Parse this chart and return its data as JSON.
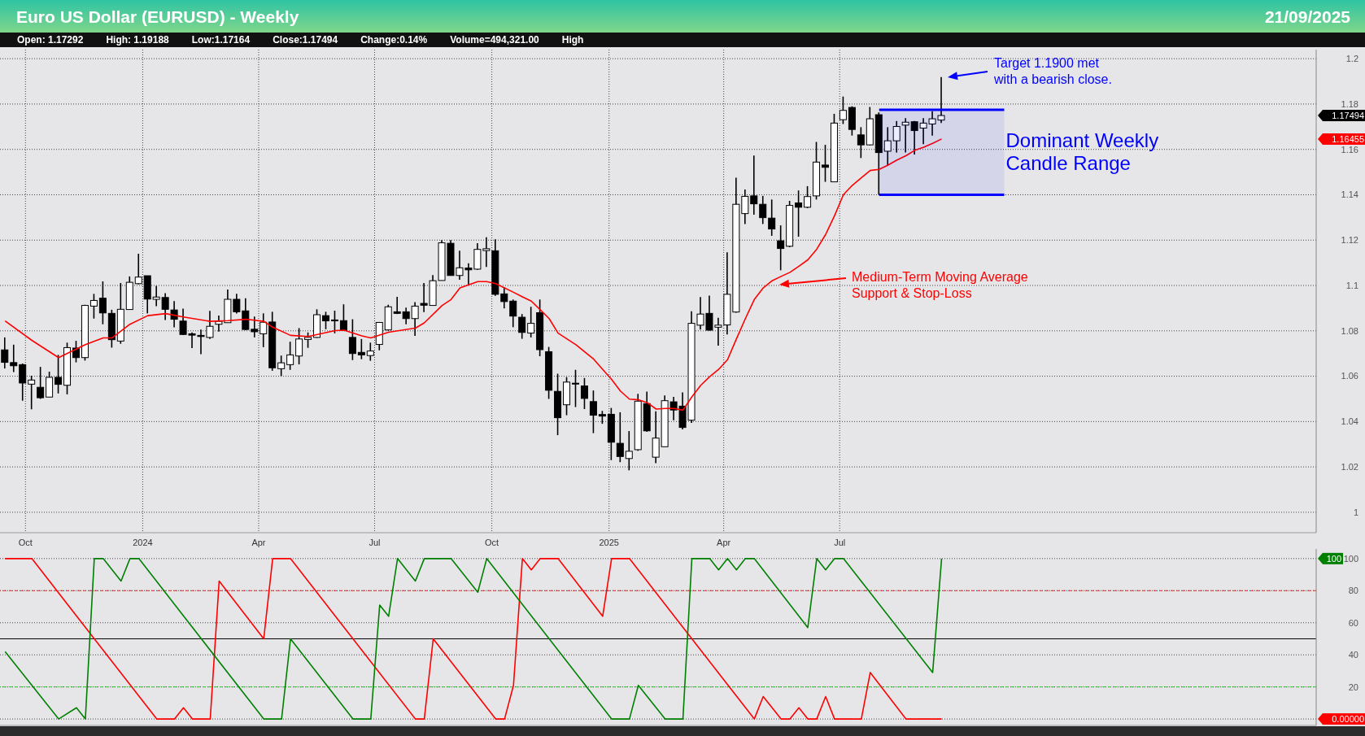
{
  "chart_data": [
    {
      "type": "candlestick",
      "title": "Euro US Dollar (EURUSD) - Weekly",
      "subtitle": "21/09/2025",
      "x": [
        "2023-09-15",
        "2023-09-22",
        "2023-09-29",
        "2023-10-06",
        "2023-10-13",
        "2023-10-20",
        "2023-10-27",
        "2023-11-03",
        "2023-11-10",
        "2023-11-17",
        "2023-11-24",
        "2023-12-01",
        "2023-12-08",
        "2023-12-15",
        "2023-12-22",
        "2023-12-29",
        "2024-01-05",
        "2024-01-12",
        "2024-01-19",
        "2024-01-26",
        "2024-02-02",
        "2024-02-09",
        "2024-02-16",
        "2024-02-23",
        "2024-03-01",
        "2024-03-08",
        "2024-03-15",
        "2024-03-22",
        "2024-03-29",
        "2024-04-05",
        "2024-04-12",
        "2024-04-19",
        "2024-04-26",
        "2024-05-03",
        "2024-05-10",
        "2024-05-17",
        "2024-05-24",
        "2024-05-31",
        "2024-06-07",
        "2024-06-14",
        "2024-06-21",
        "2024-06-28",
        "2024-07-05",
        "2024-07-12",
        "2024-07-19",
        "2024-07-26",
        "2024-08-02",
        "2024-08-09",
        "2024-08-16",
        "2024-08-23",
        "2024-08-30",
        "2024-09-06",
        "2024-09-13",
        "2024-09-20",
        "2024-09-27",
        "2024-10-04",
        "2024-10-11",
        "2024-10-18",
        "2024-10-25",
        "2024-11-01",
        "2024-11-08",
        "2024-11-15",
        "2024-11-22",
        "2024-11-29",
        "2024-12-06",
        "2024-12-13",
        "2024-12-20",
        "2024-12-27",
        "2025-01-03",
        "2025-01-10",
        "2025-01-17",
        "2025-01-24",
        "2025-01-31",
        "2025-02-07",
        "2025-02-14",
        "2025-02-21",
        "2025-02-28",
        "2025-03-07",
        "2025-03-14",
        "2025-03-21",
        "2025-03-28",
        "2025-04-04",
        "2025-04-11",
        "2025-04-18",
        "2025-04-25",
        "2025-05-02",
        "2025-05-09",
        "2025-05-16",
        "2025-05-23",
        "2025-05-30",
        "2025-06-06",
        "2025-06-13",
        "2025-06-20",
        "2025-06-27",
        "2025-07-04",
        "2025-07-11",
        "2025-07-18",
        "2025-07-25",
        "2025-08-01",
        "2025-08-08",
        "2025-08-15",
        "2025-08-22",
        "2025-08-29",
        "2025-09-05",
        "2025-09-12",
        "2025-09-19"
      ],
      "ohlc": [
        [
          1.0716,
          1.0771,
          1.0634,
          1.0661
        ],
        [
          1.066,
          1.0739,
          1.0618,
          1.0646
        ],
        [
          1.0651,
          1.0656,
          1.0492,
          1.057
        ],
        [
          1.0565,
          1.0602,
          1.0454,
          1.0583
        ],
        [
          1.0551,
          1.0641,
          1.05,
          1.0505
        ],
        [
          1.0508,
          1.062,
          1.0508,
          1.0595
        ],
        [
          1.0595,
          1.0694,
          1.0524,
          1.0564
        ],
        [
          1.056,
          1.0748,
          1.052,
          1.0726
        ],
        [
          1.0724,
          1.0756,
          1.0661,
          1.0682
        ],
        [
          1.0682,
          1.0915,
          1.0669,
          1.0912
        ],
        [
          1.0909,
          1.0963,
          1.0854,
          1.0934
        ],
        [
          1.0944,
          1.1018,
          1.0829,
          1.0879
        ],
        [
          1.0877,
          1.0893,
          1.0726,
          1.0761
        ],
        [
          1.0755,
          1.1011,
          1.0743,
          1.0895
        ],
        [
          1.0894,
          1.104,
          1.0894,
          1.1014
        ],
        [
          1.1008,
          1.114,
          1.1005,
          1.1037
        ],
        [
          1.1043,
          1.1043,
          1.0877,
          1.094
        ],
        [
          1.0939,
          1.0998,
          1.0909,
          1.0949
        ],
        [
          1.0947,
          1.0966,
          1.0848,
          1.0895
        ],
        [
          1.0892,
          1.0931,
          1.0815,
          1.0851
        ],
        [
          1.0843,
          1.0898,
          1.0781,
          1.0784
        ],
        [
          1.0787,
          1.0793,
          1.0724,
          1.0781
        ],
        [
          1.078,
          1.0806,
          1.0697,
          1.0775
        ],
        [
          1.0771,
          1.0888,
          1.0764,
          1.082
        ],
        [
          1.0829,
          1.0867,
          1.0797,
          1.0842
        ],
        [
          1.0836,
          1.0982,
          1.0836,
          1.0939
        ],
        [
          1.0939,
          1.0963,
          1.0876,
          1.0884
        ],
        [
          1.0888,
          1.0944,
          1.0803,
          1.0806
        ],
        [
          1.0807,
          1.0863,
          1.0771,
          1.0796
        ],
        [
          1.0787,
          1.0877,
          1.0728,
          1.0838
        ],
        [
          1.0839,
          1.0884,
          1.0624,
          1.0637
        ],
        [
          1.0633,
          1.0691,
          1.0601,
          1.0659
        ],
        [
          1.0651,
          1.0752,
          1.0628,
          1.0694
        ],
        [
          1.0689,
          1.0812,
          1.0652,
          1.0764
        ],
        [
          1.0762,
          1.0793,
          1.0725,
          1.0771
        ],
        [
          1.0771,
          1.0895,
          1.0769,
          1.0871
        ],
        [
          1.0867,
          1.0884,
          1.0807,
          1.0844
        ],
        [
          1.0848,
          1.0889,
          1.0789,
          1.0844
        ],
        [
          1.0845,
          1.0917,
          1.0799,
          1.0801
        ],
        [
          1.0771,
          1.0851,
          1.0671,
          1.07
        ],
        [
          1.0705,
          1.0764,
          1.0675,
          1.0694
        ],
        [
          1.0691,
          1.0748,
          1.0668,
          1.0711
        ],
        [
          1.074,
          1.0839,
          1.0714,
          1.0837
        ],
        [
          1.0804,
          1.0915,
          1.0801,
          1.0906
        ],
        [
          1.0884,
          1.095,
          1.0874,
          1.0877
        ],
        [
          1.0884,
          1.0902,
          1.0829,
          1.0854
        ],
        [
          1.0854,
          1.0927,
          1.0778,
          1.0909
        ],
        [
          1.0921,
          1.1011,
          1.0883,
          1.0913
        ],
        [
          1.0912,
          1.1046,
          1.0912,
          1.1021
        ],
        [
          1.1022,
          1.12,
          1.1022,
          1.1188
        ],
        [
          1.1186,
          1.12,
          1.1044,
          1.1044
        ],
        [
          1.1044,
          1.1153,
          1.1025,
          1.1078
        ],
        [
          1.1077,
          1.1098,
          1.1004,
          1.1069
        ],
        [
          1.1072,
          1.1187,
          1.1069,
          1.1159
        ],
        [
          1.1154,
          1.1213,
          1.1082,
          1.1162
        ],
        [
          1.1153,
          1.1204,
          1.0954,
          1.0961
        ],
        [
          1.0963,
          1.0993,
          1.0899,
          1.0929
        ],
        [
          1.0931,
          1.0938,
          1.0816,
          1.0865
        ],
        [
          1.086,
          1.0874,
          1.0765,
          1.0793
        ],
        [
          1.079,
          1.0906,
          1.0771,
          1.0833
        ],
        [
          1.088,
          1.0938,
          1.0688,
          1.0717
        ],
        [
          1.0708,
          1.0729,
          1.05,
          1.0538
        ],
        [
          1.0533,
          1.0611,
          1.034,
          1.0417
        ],
        [
          1.0474,
          1.0596,
          1.0428,
          1.0574
        ],
        [
          1.0569,
          1.0628,
          1.0464,
          1.0566
        ],
        [
          1.0557,
          1.0592,
          1.0455,
          1.0502
        ],
        [
          1.0488,
          1.0537,
          1.0349,
          1.0428
        ],
        [
          1.0431,
          1.0447,
          1.039,
          1.0424
        ],
        [
          1.0432,
          1.046,
          1.023,
          1.0309
        ],
        [
          1.0304,
          1.0441,
          1.0221,
          1.0246
        ],
        [
          1.0237,
          1.0358,
          1.0185,
          1.0269
        ],
        [
          1.0276,
          1.0522,
          1.0271,
          1.049
        ],
        [
          1.0479,
          1.0532,
          1.0355,
          1.0359
        ],
        [
          1.0243,
          1.0445,
          1.0217,
          1.0327
        ],
        [
          1.0289,
          1.0515,
          1.0289,
          1.0492
        ],
        [
          1.0487,
          1.0509,
          1.0406,
          1.0451
        ],
        [
          1.0468,
          1.0529,
          1.0365,
          1.0374
        ],
        [
          1.0406,
          1.0886,
          1.0394,
          1.0833
        ],
        [
          1.0825,
          1.0949,
          1.0806,
          1.0874
        ],
        [
          1.0877,
          1.0955,
          1.0801,
          1.0803
        ],
        [
          1.0816,
          1.0858,
          1.0735,
          1.0825
        ],
        [
          1.0826,
          1.1146,
          1.0784,
          1.0961
        ],
        [
          1.0883,
          1.1475,
          1.088,
          1.1358
        ],
        [
          1.1317,
          1.1423,
          1.1271,
          1.1393
        ],
        [
          1.1395,
          1.1573,
          1.1312,
          1.136
        ],
        [
          1.1358,
          1.1395,
          1.1271,
          1.1299
        ],
        [
          1.1297,
          1.1379,
          1.1219,
          1.1249
        ],
        [
          1.1197,
          1.1265,
          1.1067,
          1.1163
        ],
        [
          1.1173,
          1.1373,
          1.1169,
          1.1353
        ],
        [
          1.1364,
          1.1419,
          1.1215,
          1.1345
        ],
        [
          1.1345,
          1.1438,
          1.1341,
          1.1392
        ],
        [
          1.1395,
          1.1633,
          1.1379,
          1.1544
        ],
        [
          1.1531,
          1.162,
          1.1457,
          1.1521
        ],
        [
          1.1457,
          1.1757,
          1.1457,
          1.1716
        ],
        [
          1.1731,
          1.1833,
          1.1712,
          1.1772
        ],
        [
          1.1785,
          1.179,
          1.1661,
          1.1688
        ],
        [
          1.1664,
          1.1698,
          1.1562,
          1.162
        ],
        [
          1.162,
          1.1787,
          1.1618,
          1.1735
        ],
        [
          1.1753,
          1.1763,
          1.14,
          1.1586
        ],
        [
          1.1592,
          1.1698,
          1.1527,
          1.1638
        ],
        [
          1.1638,
          1.1725,
          1.1586,
          1.1701
        ],
        [
          1.1707,
          1.1738,
          1.1586,
          1.172
        ],
        [
          1.1722,
          1.1725,
          1.1577,
          1.1683
        ],
        [
          1.1694,
          1.1738,
          1.1623,
          1.1716
        ],
        [
          1.1712,
          1.1768,
          1.1661,
          1.1735
        ],
        [
          1.17292,
          1.19188,
          1.17164,
          1.17494
        ]
      ],
      "series": [
        {
          "type": "line",
          "color": "#ff0000",
          "x": [
            "2023-09-15",
            "2023-10-06",
            "2023-10-27",
            "2023-11-17",
            "2023-12-01",
            "2023-12-08",
            "2023-12-22",
            "2024-01-05",
            "2024-01-19",
            "2024-02-02",
            "2024-02-23",
            "2024-03-08",
            "2024-03-22",
            "2024-04-05",
            "2024-04-12",
            "2024-04-26",
            "2024-05-10",
            "2024-05-31",
            "2024-06-07",
            "2024-06-21",
            "2024-06-28",
            "2024-07-12",
            "2024-08-02",
            "2024-08-09",
            "2024-08-23",
            "2024-08-30",
            "2024-09-06",
            "2024-09-20",
            "2024-09-27",
            "2024-10-04",
            "2024-10-18",
            "2024-10-25",
            "2024-11-01",
            "2024-11-08",
            "2024-11-15",
            "2024-11-22",
            "2024-12-06",
            "2024-12-20",
            "2024-12-27",
            "2025-01-03",
            "2025-01-10",
            "2025-01-17",
            "2025-01-24",
            "2025-01-31",
            "2025-02-07",
            "2025-02-14",
            "2025-02-21",
            "2025-02-28",
            "2025-03-07",
            "2025-03-14",
            "2025-03-21",
            "2025-03-28",
            "2025-04-04",
            "2025-04-11",
            "2025-04-18",
            "2025-04-25",
            "2025-05-02",
            "2025-05-09",
            "2025-05-16",
            "2025-05-23",
            "2025-05-30",
            "2025-06-06",
            "2025-06-13",
            "2025-06-20",
            "2025-06-27",
            "2025-07-04",
            "2025-07-11",
            "2025-07-18",
            "2025-07-25",
            "2025-08-01",
            "2025-08-08",
            "2025-08-15",
            "2025-08-22",
            "2025-08-29",
            "2025-09-05",
            "2025-09-12",
            "2025-09-19"
          ],
          "values": [
            1.0844,
            1.0758,
            1.0682,
            1.0739,
            1.0769,
            1.0769,
            1.0829,
            1.0867,
            1.0876,
            1.0861,
            1.0842,
            1.0845,
            1.0851,
            1.0842,
            1.0816,
            1.078,
            1.0775,
            1.0801,
            1.0803,
            1.0778,
            1.0769,
            1.0794,
            1.0812,
            1.0835,
            1.0912,
            1.0938,
            1.0989,
            1.1017,
            1.1017,
            1.1008,
            1.097,
            1.095,
            1.0931,
            1.0893,
            1.0854,
            1.079,
            1.0739,
            1.0675,
            1.063,
            1.0586,
            1.0534,
            1.0499,
            1.0496,
            1.0483,
            1.0455,
            1.0458,
            1.0458,
            1.045,
            1.0509,
            1.056,
            1.0598,
            1.063,
            1.0673,
            1.0765,
            1.0854,
            1.0938,
            1.0989,
            1.1021,
            1.104,
            1.1058,
            1.1085,
            1.1113,
            1.116,
            1.1225,
            1.1308,
            1.1401,
            1.1442,
            1.1475,
            1.1507,
            1.1512,
            1.1531,
            1.1553,
            1.1572,
            1.1596,
            1.161,
            1.1627,
            1.1646
          ]
        }
      ],
      "xlim": [
        "2023-09-11",
        "2026-07-10"
      ],
      "xticks": [
        {
          "value": "2023-10-01",
          "label": "Oct"
        },
        {
          "value": "2024-01-01",
          "label": "2024"
        },
        {
          "value": "2024-04-01",
          "label": "Apr"
        },
        {
          "value": "2024-07-01",
          "label": "Jul"
        },
        {
          "value": "2024-10-01",
          "label": "Oct"
        },
        {
          "value": "2025-01-01",
          "label": "2025"
        },
        {
          "value": "2025-04-01",
          "label": "Apr"
        },
        {
          "value": "2025-07-01",
          "label": "Jul"
        }
      ],
      "ylim": [
        0.991,
        1.204
      ],
      "yticks": [
        1,
        1.02,
        1.04,
        1.06,
        1.08,
        1.1,
        1.12,
        1.14,
        1.16,
        1.18,
        1.2
      ],
      "grid": true,
      "bands": [
        {
          "axis": "y",
          "from": 1.14,
          "to": 1.1775,
          "label": "Dominant Weekly\nCandle Range",
          "color": "#0000ff"
        }
      ],
      "annotations": [
        "Open: 1.17292",
        "High: 1.19188",
        "Low:1.17164",
        "Close:1.17494",
        "Change:0.14%",
        "Volume=494,321.00",
        "High",
        "Target 1.1900 met\nwith a bearish close.",
        "Medium-Term Moving Average\nSupport & Stop-Loss",
        "1.17494",
        "1.16455"
      ]
    },
    {
      "type": "line",
      "series": [
        {
          "color": "#ff0000",
          "x": [
            "2023-09-15",
            "2023-10-06",
            "2024-01-12",
            "2024-01-26",
            "2024-02-02",
            "2024-02-09",
            "2024-02-23",
            "2024-03-01",
            "2024-04-05",
            "2024-04-12",
            "2024-04-26",
            "2024-08-02",
            "2024-08-09",
            "2024-08-16",
            "2024-10-04",
            "2024-10-11",
            "2024-10-18",
            "2024-10-25",
            "2024-11-01",
            "2024-11-08",
            "2024-11-22",
            "2024-12-27",
            "2025-01-03",
            "2025-01-17",
            "2025-04-25",
            "2025-05-02",
            "2025-05-16",
            "2025-05-23",
            "2025-05-30",
            "2025-06-06",
            "2025-06-13",
            "2025-06-20",
            "2025-06-27",
            "2025-07-18",
            "2025-07-25",
            "2025-08-22",
            "2025-09-19"
          ],
          "values": [
            100,
            100,
            0,
            0,
            7,
            0,
            0,
            86,
            50,
            100,
            100,
            0,
            0,
            50,
            0,
            0,
            21,
            100,
            93,
            100,
            100,
            64,
            100,
            100,
            0,
            14,
            0,
            0,
            7,
            0,
            0,
            14,
            0,
            0,
            29,
            0,
            0
          ]
        },
        {
          "color": "#008000",
          "x": [
            "2023-09-15",
            "2023-10-27",
            "2023-11-10",
            "2023-11-17",
            "2023-11-24",
            "2023-12-01",
            "2023-12-15",
            "2023-12-22",
            "2023-12-29",
            "2024-04-05",
            "2024-04-19",
            "2024-04-26",
            "2024-06-14",
            "2024-06-28",
            "2024-07-05",
            "2024-07-12",
            "2024-07-19",
            "2024-08-02",
            "2024-08-09",
            "2024-08-30",
            "2024-09-20",
            "2024-09-27",
            "2025-01-03",
            "2025-01-17",
            "2025-01-24",
            "2025-02-14",
            "2025-02-28",
            "2025-03-07",
            "2025-03-21",
            "2025-03-28",
            "2025-04-04",
            "2025-04-11",
            "2025-04-18",
            "2025-04-25",
            "2025-06-06",
            "2025-06-13",
            "2025-06-20",
            "2025-06-27",
            "2025-07-04",
            "2025-09-12",
            "2025-09-19"
          ],
          "values": [
            42,
            0,
            7,
            0,
            100,
            100,
            86,
            100,
            100,
            0,
            0,
            50,
            0,
            0,
            71,
            64,
            100,
            86,
            100,
            100,
            79,
            100,
            0,
            0,
            21,
            0,
            0,
            100,
            100,
            93,
            100,
            93,
            100,
            100,
            57,
            100,
            93,
            100,
            100,
            29,
            100
          ]
        }
      ],
      "xlim": [
        "2023-09-11",
        "2026-07-10"
      ],
      "xticks": [
        {
          "value": "2023-10-01",
          "label": null
        },
        {
          "value": "2024-01-01",
          "label": null
        },
        {
          "value": "2024-04-01",
          "label": null
        },
        {
          "value": "2024-07-01",
          "label": null
        },
        {
          "value": "2024-10-01",
          "label": null
        },
        {
          "value": "2025-01-01",
          "label": null
        },
        {
          "value": "2025-04-01",
          "label": null
        },
        {
          "value": "2025-07-01",
          "label": null
        }
      ],
      "ylim": [
        -4,
        106
      ],
      "yticks": [
        {
          "value": 0,
          "label": null
        },
        20,
        40,
        60,
        80,
        100
      ],
      "tick_labels": "y",
      "grid": true,
      "ref_lines": [
        {
          "axis": "y",
          "value": 80,
          "color": "#e03030",
          "line_style": "dashed"
        },
        {
          "axis": "y",
          "value": 50,
          "color": "#000000",
          "line_style": "solid"
        },
        {
          "axis": "y",
          "value": 20,
          "color": "#30d030",
          "line_style": "dashed"
        }
      ],
      "annotations": [
        "100",
        "0.00000"
      ]
    }
  ]
}
